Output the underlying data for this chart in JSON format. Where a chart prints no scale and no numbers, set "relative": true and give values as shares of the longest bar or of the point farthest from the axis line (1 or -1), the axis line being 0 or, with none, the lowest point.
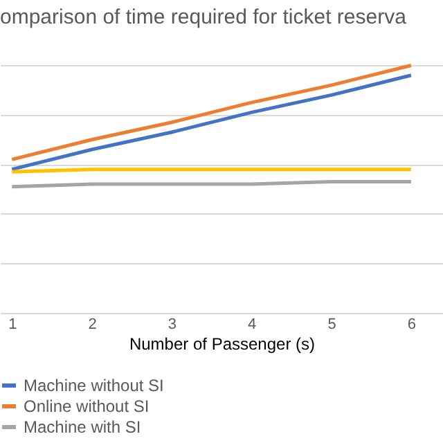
{
  "chart_data": {
    "type": "line",
    "title": "omparison of time required for ticket reserva",
    "xlabel": "Number of Passenger (s)",
    "categories": [
      "1",
      "2",
      "3",
      "4",
      "5",
      "6"
    ],
    "relative": true,
    "grid": "y",
    "legend": "bottom",
    "line_style": "solid",
    "marker": "none",
    "series": [
      {
        "name": "Machine without SI",
        "color": "#4472c4",
        "values": [
          0.58,
          0.66,
          0.73,
          0.81,
          0.88,
          0.96
        ]
      },
      {
        "name": "Online without SI",
        "color": "#ed7d31",
        "values": [
          0.62,
          0.7,
          0.77,
          0.85,
          0.92,
          1.0
        ]
      },
      {
        "name": "Machine with SI",
        "color": "#a5a5a5",
        "values": [
          0.51,
          0.52,
          0.52,
          0.52,
          0.53,
          0.53
        ]
      },
      {
        "color": "#ffc000",
        "values": [
          0.57,
          0.58,
          0.58,
          0.58,
          0.58,
          0.58
        ]
      }
    ]
  }
}
